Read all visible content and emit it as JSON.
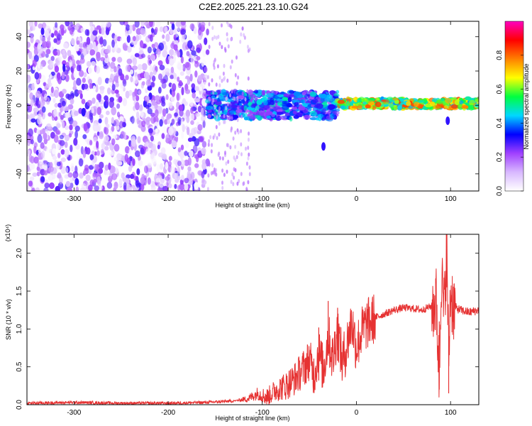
{
  "chart_data": [
    {
      "type": "heatmap",
      "title": "C2E2.2025.221.23.10.G24",
      "xlabel": "Height of straight line (km)",
      "ylabel": "Frequency (Hz)",
      "xlim": [
        -350,
        130
      ],
      "ylim": [
        -50,
        49
      ],
      "x_ticks": [
        -300,
        -200,
        -100,
        0,
        100
      ],
      "y_ticks": [
        -40,
        -20,
        0,
        20,
        40
      ],
      "colorbar": {
        "label": "Normalized spectral amplitude",
        "range": [
          0,
          1
        ],
        "ticks": [
          "0.0",
          "0.2",
          "0.4",
          "0.6",
          "0.8"
        ],
        "colors": [
          "#ffffff",
          "#d8b8ff",
          "#a040ff",
          "#0000ff",
          "#00d8ff",
          "#00ff40",
          "#ffff00",
          "#ff8000",
          "#ff0000",
          "#ff00c0"
        ]
      },
      "regions": [
        {
          "x_range": [
            -350,
            -158
          ],
          "freq_range": [
            -50,
            49
          ],
          "amplitude": [
            0.0,
            0.3
          ]
        },
        {
          "x_range": [
            -158,
            -20
          ],
          "freq_range": [
            -8,
            8
          ],
          "amplitude": [
            0.2,
            0.5
          ]
        },
        {
          "x_range": [
            -20,
            130
          ],
          "freq_range": [
            -3,
            6
          ],
          "amplitude": [
            0.4,
            0.85
          ],
          "center_freq": 1
        }
      ],
      "feature_points": [
        {
          "x": -290,
          "freq": -4
        },
        {
          "x": -35,
          "freq": -24
        },
        {
          "x": 97,
          "freq": -9
        }
      ]
    },
    {
      "type": "line",
      "xlabel": "Height of straight line (km)",
      "ylabel": "SNR (10 * v/v)",
      "y_multiplier": "(x10⁴)",
      "xlim": [
        -350,
        130
      ],
      "ylim": [
        0,
        2.25
      ],
      "x_ticks": [
        -300,
        -200,
        -100,
        0,
        100
      ],
      "y_ticks": [
        "0.0",
        "0.5",
        "1.0",
        "1.5",
        "2.0"
      ],
      "series": [
        {
          "color": "#e63232",
          "x": [
            -350,
            -300,
            -250,
            -200,
            -160,
            -130,
            -115,
            -105,
            -95,
            -85,
            -75,
            -65,
            -55,
            -50,
            -45,
            -40,
            -35,
            -30,
            -25,
            -20,
            -15,
            -10,
            -5,
            0,
            5,
            10,
            20,
            30,
            40,
            50,
            60,
            70,
            75,
            80,
            85,
            88,
            90,
            93,
            96,
            98,
            100,
            103,
            110,
            120,
            130
          ],
          "y": [
            0.02,
            0.03,
            0.02,
            0.02,
            0.03,
            0.05,
            0.08,
            0.15,
            0.1,
            0.2,
            0.25,
            0.35,
            0.5,
            0.6,
            0.4,
            0.7,
            0.45,
            0.9,
            0.6,
            1.0,
            0.55,
            0.8,
            1.1,
            0.75,
            0.95,
            1.05,
            1.15,
            1.2,
            1.25,
            1.28,
            1.27,
            1.25,
            1.28,
            1.3,
            1.35,
            0.3,
            1.8,
            1.2,
            2.1,
            0.6,
            1.5,
            1.3,
            1.25,
            1.22,
            1.25
          ],
          "peaks": [
            {
              "x": -40,
              "y": 1.02
            },
            {
              "x": -30,
              "y": 1.37
            },
            {
              "x": -20,
              "y": 1.28
            },
            {
              "x": 88,
              "y": 0.2
            },
            {
              "x": 96,
              "y": 2.25
            },
            {
              "x": 98,
              "y": 0.15
            }
          ]
        }
      ]
    }
  ]
}
